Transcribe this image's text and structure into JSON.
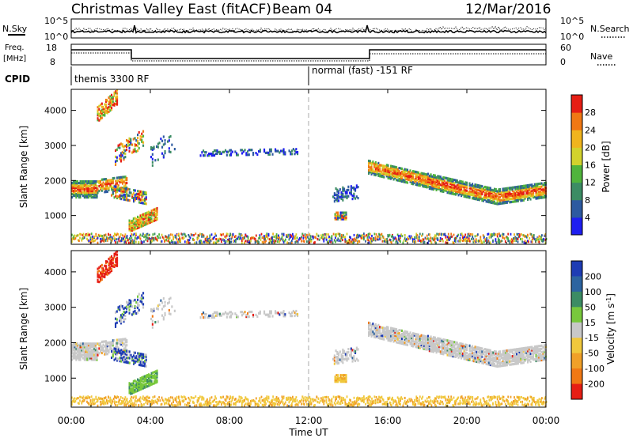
{
  "header": {
    "station": "Christmas Valley East (fitACF)",
    "beam": "Beam 04",
    "date": "12/Mar/2016"
  },
  "status_panel": {
    "nsky_label": "N.Sky",
    "nsearch_label": "N.Search",
    "nsky_ticks": [
      "10^5",
      "10^0"
    ],
    "nsearch_ticks": [
      "10^5",
      "10^0"
    ],
    "freq_label_1": "Freq.",
    "freq_label_2": "[MHz]",
    "freq_ticks": [
      "18",
      "8"
    ],
    "nave_label": "Nave",
    "nave_ticks": [
      "60",
      "0"
    ],
    "cpid_label": "CPID",
    "cpid_segments": [
      {
        "label": "themis 3300 RF",
        "start": "00:00",
        "end": "12:00"
      },
      {
        "label": "normal (fast) -151 RF",
        "start": "12:00",
        "end": "24:00"
      }
    ]
  },
  "chart_data": [
    {
      "type": "heatmap",
      "panel": "power",
      "ylabel": "Slant Range [km]",
      "yticks": [
        "1000",
        "2000",
        "3000",
        "4000"
      ],
      "ylim": [
        180,
        4600
      ],
      "colorbar_label": "Power [dB]",
      "colorbar_ticks": [
        "4",
        "8",
        "12",
        "16",
        "20",
        "24",
        "28"
      ],
      "colorbar_range": [
        0,
        32
      ],
      "colors": [
        "#1e1ef0",
        "#2d5aa0",
        "#3c8c64",
        "#50b43c",
        "#d2d22d",
        "#f0b41e",
        "#f07814",
        "#e61e14"
      ]
    },
    {
      "type": "heatmap",
      "panel": "velocity",
      "ylabel": "Slant Range [km]",
      "yticks": [
        "1000",
        "2000",
        "3000",
        "4000"
      ],
      "ylim": [
        180,
        4600
      ],
      "colorbar_label": "Velocity [m s-1]",
      "colorbar_ticks": [
        "200",
        "100",
        "50",
        "15",
        "-15",
        "-50",
        "-100",
        "-200"
      ],
      "colors": [
        "#1e3cb4",
        "#2d64a0",
        "#3c8c64",
        "#78c83c",
        "#c8c8c8",
        "#f0c83c",
        "#f0a028",
        "#f07814",
        "#e61e14"
      ]
    }
  ],
  "xaxis": {
    "label": "Time UT",
    "ticks": [
      "00:00",
      "04:00",
      "08:00",
      "12:00",
      "16:00",
      "20:00",
      "00:00"
    ]
  }
}
